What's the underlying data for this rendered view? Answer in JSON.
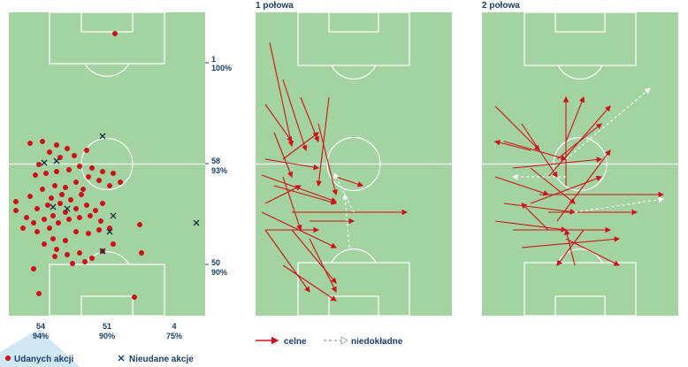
{
  "panels": {
    "first_half_title": "1 połowa",
    "second_half_title": "2 połowa"
  },
  "zone_stats": {
    "right": [
      {
        "count": "1",
        "pct": "100%"
      },
      {
        "count": "58",
        "pct": "93%"
      },
      {
        "count": "50",
        "pct": "90%"
      }
    ],
    "bottom": [
      {
        "count": "54",
        "pct": "94%"
      },
      {
        "count": "51",
        "pct": "90%"
      },
      {
        "count": "4",
        "pct": "75%"
      }
    ]
  },
  "legend": {
    "success_label": "Udanych akcji",
    "fail_label": "Nieudane akcje",
    "accurate_label": "celne",
    "inaccurate_label": "niedokładne"
  },
  "colors": {
    "pitch": "#a3d3a0",
    "accent_red": "#d0101a",
    "text": "#1b3f6b",
    "highlight": "#cfe6f3"
  },
  "actions_map": {
    "successful": [
      [
        130,
        38
      ],
      [
        34,
        162
      ],
      [
        48,
        160
      ],
      [
        64,
        164
      ],
      [
        76,
        168
      ],
      [
        84,
        176
      ],
      [
        98,
        170
      ],
      [
        56,
        172
      ],
      [
        68,
        178
      ],
      [
        44,
        186
      ],
      [
        40,
        198
      ],
      [
        52,
        196
      ],
      [
        64,
        194
      ],
      [
        78,
        192
      ],
      [
        90,
        188
      ],
      [
        104,
        190
      ],
      [
        116,
        194
      ],
      [
        128,
        196
      ],
      [
        136,
        206
      ],
      [
        124,
        210
      ],
      [
        112,
        204
      ],
      [
        100,
        200
      ],
      [
        86,
        206
      ],
      [
        74,
        212
      ],
      [
        62,
        210
      ],
      [
        48,
        214
      ],
      [
        34,
        222
      ],
      [
        18,
        228
      ],
      [
        18,
        238
      ],
      [
        30,
        246
      ],
      [
        42,
        236
      ],
      [
        54,
        232
      ],
      [
        68,
        230
      ],
      [
        80,
        226
      ],
      [
        92,
        220
      ],
      [
        98,
        232
      ],
      [
        86,
        236
      ],
      [
        74,
        240
      ],
      [
        60,
        244
      ],
      [
        50,
        248
      ],
      [
        38,
        252
      ],
      [
        26,
        258
      ],
      [
        42,
        262
      ],
      [
        56,
        258
      ],
      [
        66,
        252
      ],
      [
        78,
        248
      ],
      [
        90,
        246
      ],
      [
        102,
        244
      ],
      [
        114,
        250
      ],
      [
        124,
        258
      ],
      [
        112,
        260
      ],
      [
        100,
        264
      ],
      [
        86,
        262
      ],
      [
        74,
        272
      ],
      [
        60,
        270
      ],
      [
        50,
        276
      ],
      [
        64,
        282
      ],
      [
        76,
        288
      ],
      [
        90,
        286
      ],
      [
        104,
        292
      ],
      [
        116,
        284
      ],
      [
        128,
        276
      ],
      [
        96,
        296
      ],
      [
        82,
        298
      ],
      [
        62,
        290
      ],
      [
        38,
        304
      ],
      [
        158,
        254
      ],
      [
        160,
        286
      ],
      [
        152,
        336
      ],
      [
        44,
        332
      ],
      [
        70,
        220
      ],
      [
        94,
        214
      ],
      [
        58,
        224
      ],
      [
        116,
        230
      ],
      [
        108,
        238
      ]
    ],
    "failed": [
      [
        116,
        154
      ],
      [
        64,
        182
      ],
      [
        50,
        184
      ],
      [
        60,
        234
      ],
      [
        76,
        236
      ],
      [
        128,
        244
      ],
      [
        124,
        262
      ],
      [
        116,
        284
      ],
      [
        222,
        252
      ]
    ]
  },
  "passes_first_half": {
    "accurate": [
      [
        305,
        48,
        330,
        165
      ],
      [
        320,
        90,
        346,
        170
      ],
      [
        300,
        118,
        330,
        160
      ],
      [
        340,
        110,
        360,
        160
      ],
      [
        310,
        150,
        330,
        200
      ],
      [
        296,
        198,
        380,
        228
      ],
      [
        300,
        230,
        340,
        210
      ],
      [
        320,
        200,
        340,
        260
      ],
      [
        330,
        260,
        380,
        320
      ],
      [
        350,
        270,
        380,
        330
      ],
      [
        320,
        300,
        380,
        340
      ],
      [
        300,
        260,
        350,
        330
      ],
      [
        296,
        240,
        380,
        280
      ],
      [
        360,
        140,
        380,
        220
      ],
      [
        372,
        110,
        360,
        210
      ],
      [
        300,
        180,
        360,
        190
      ],
      [
        310,
        210,
        380,
        230
      ],
      [
        320,
        180,
        360,
        150
      ],
      [
        330,
        240,
        460,
        240
      ],
      [
        350,
        250,
        400,
        250
      ],
      [
        380,
        200,
        410,
        210
      ],
      [
        300,
        260,
        360,
        260
      ]
    ],
    "inaccurate": [
      [
        395,
        280,
        390,
        220
      ],
      [
        400,
        240,
        378,
        196
      ]
    ]
  },
  "passes_second_half": {
    "accurate": [
      [
        560,
        120,
        610,
        170
      ],
      [
        570,
        160,
        640,
        180
      ],
      [
        590,
        140,
        630,
        200
      ],
      [
        600,
        190,
        650,
        230
      ],
      [
        560,
        200,
        620,
        220
      ],
      [
        570,
        230,
        650,
        240
      ],
      [
        560,
        250,
        640,
        260
      ],
      [
        580,
        260,
        690,
        260
      ],
      [
        590,
        280,
        700,
        270
      ],
      [
        600,
        230,
        680,
        200
      ],
      [
        620,
        200,
        690,
        120
      ],
      [
        630,
        180,
        680,
        140
      ],
      [
        640,
        160,
        660,
        110
      ],
      [
        610,
        220,
        750,
        220
      ],
      [
        620,
        240,
        720,
        240
      ],
      [
        630,
        250,
        690,
        170
      ],
      [
        640,
        270,
        700,
        300
      ],
      [
        650,
        300,
        640,
        260
      ],
      [
        660,
        260,
        630,
        300
      ],
      [
        600,
        170,
        560,
        160
      ],
      [
        580,
        190,
        680,
        180
      ],
      [
        640,
        210,
        640,
        110
      ],
      [
        620,
        260,
        590,
        230
      ]
    ],
    "inaccurate": [
      [
        640,
        180,
        735,
        100
      ],
      [
        650,
        240,
        750,
        225
      ],
      [
        640,
        200,
        580,
        200
      ]
    ]
  }
}
